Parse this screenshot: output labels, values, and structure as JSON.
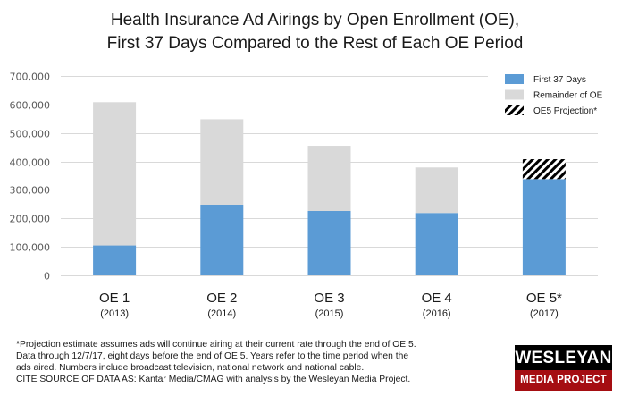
{
  "chart_data": {
    "type": "bar",
    "stacked": true,
    "title": "Health Insurance Ad Airings by Open Enrollment (OE),",
    "subtitle": "First 37 Days Compared to the Rest of Each OE Period",
    "xlabel": "",
    "ylabel": "",
    "ylim": [
      0,
      700000
    ],
    "yticks": [
      0,
      100000,
      200000,
      300000,
      400000,
      500000,
      600000,
      700000
    ],
    "ytick_labels": [
      "0",
      "100,000",
      "200,000",
      "300,000",
      "400,000",
      "500,000",
      "600,000",
      "700,000"
    ],
    "grid": true,
    "legend_position": "top-right",
    "categories": [
      "OE 1",
      "OE 2",
      "OE 3",
      "OE 4",
      "OE 5*"
    ],
    "category_sublabels": [
      "(2013)",
      "(2014)",
      "(2015)",
      "(2016)",
      "(2017)"
    ],
    "series": [
      {
        "name": "First 37 Days",
        "color": "#5b9bd5",
        "pattern": "solid",
        "values": [
          105000,
          248000,
          226000,
          219000,
          338000
        ]
      },
      {
        "name": "Remainder of OE",
        "color": "#d9d9d9",
        "pattern": "solid",
        "values": [
          503000,
          300000,
          229000,
          160000,
          0
        ]
      },
      {
        "name": "OE5 Projection*",
        "color": "#000000",
        "pattern": "hatch",
        "values": [
          0,
          0,
          0,
          0,
          70000
        ]
      }
    ]
  },
  "notes": [
    "*Projection estimate assumes ads will continue airing at their current rate through the end of OE 5.",
    "Data through 12/7/17, eight days before the end of OE 5. Years refer to the time period when the",
    "ads aired. Numbers include broadcast television, national network and national cable.",
    "CITE SOURCE OF DATA AS: Kantar Media/CMAG with analysis by the Wesleyan Media Project."
  ],
  "logo": {
    "line1": "WESLEYAN",
    "line2": "MEDIA PROJECT"
  }
}
